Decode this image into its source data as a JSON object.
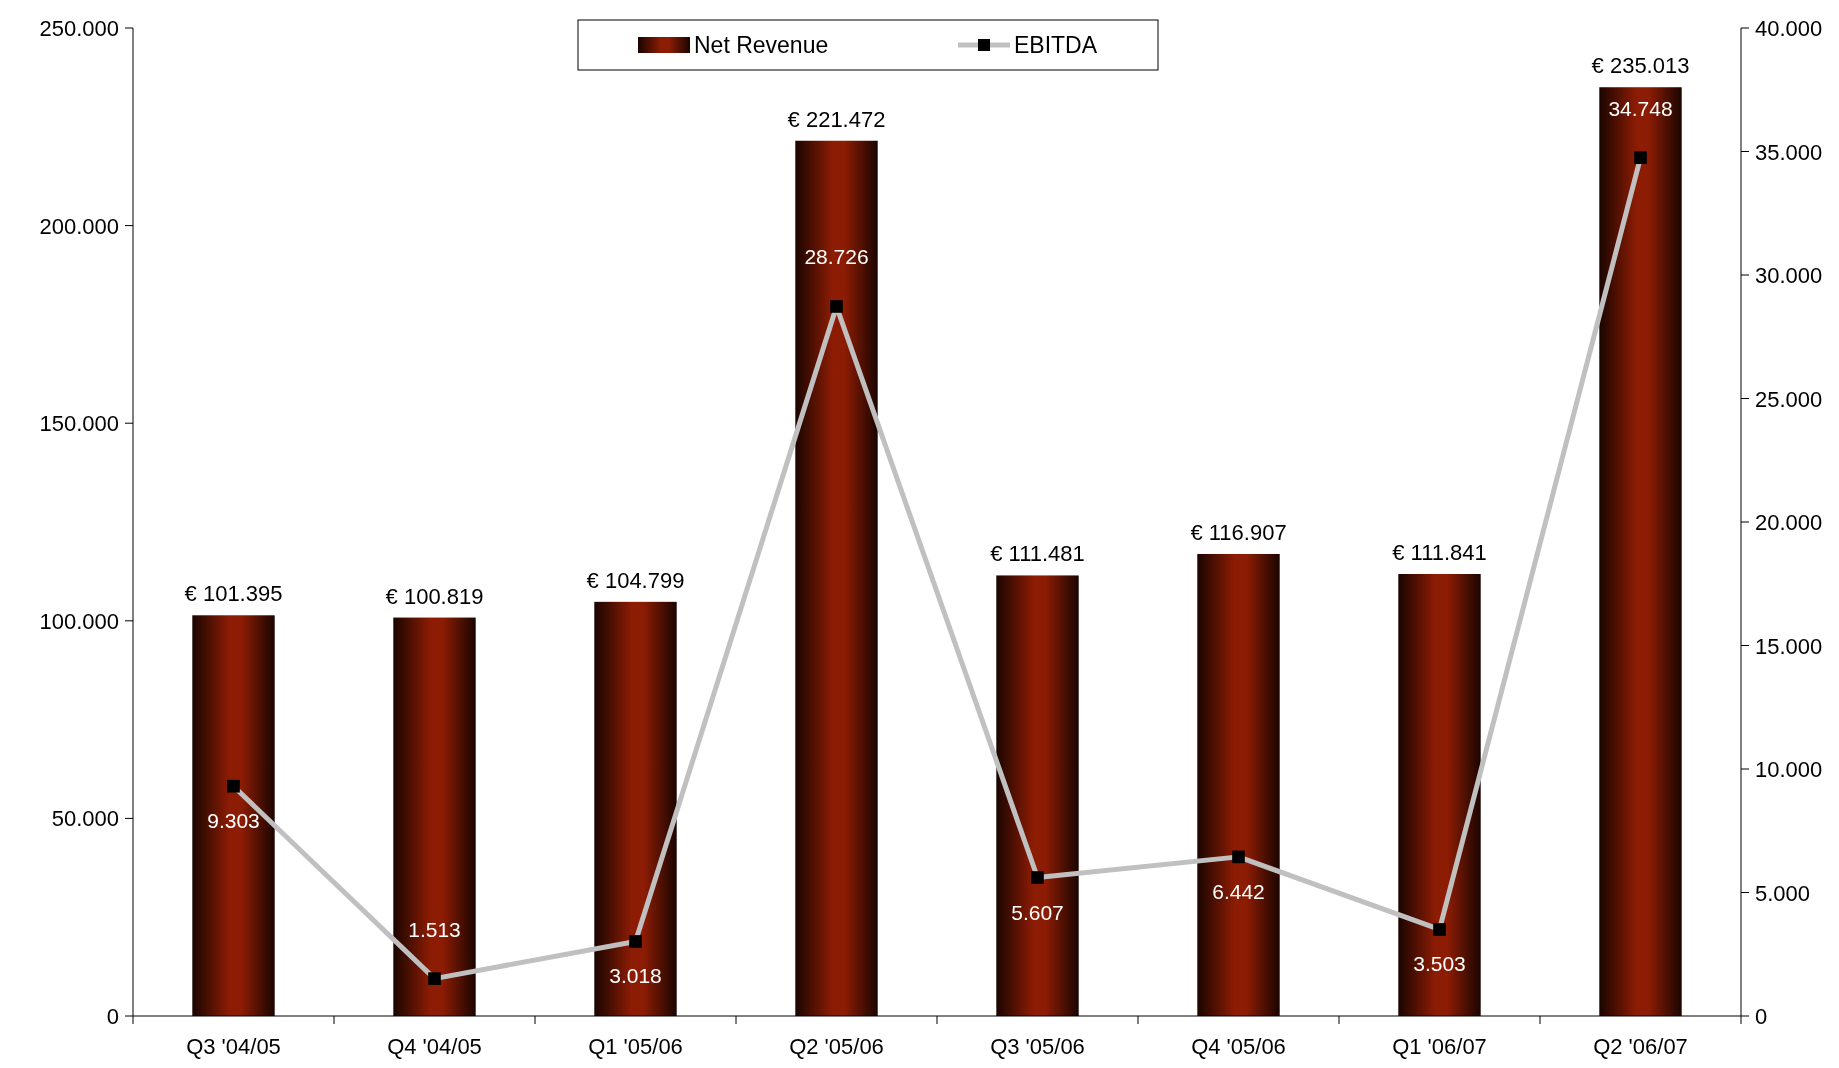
{
  "chart_data": {
    "type": "bar",
    "categories": [
      "Q3 '04/05",
      "Q4 '04/05",
      "Q1 '05/06",
      "Q2 '05/06",
      "Q3 '05/06",
      "Q4 '05/06",
      "Q1 '06/07",
      "Q2 '06/07"
    ],
    "series": [
      {
        "name": "Net Revenue",
        "color": "#8c1c04",
        "values": [
          101395,
          100819,
          104799,
          221472,
          111481,
          116907,
          111841,
          235013
        ],
        "value_labels": [
          "€ 101.395",
          "€ 100.819",
          "€ 104.799",
          "€ 221.472",
          "€ 111.481",
          "€ 116.907",
          "€ 111.841",
          "€ 235.013"
        ]
      },
      {
        "name": "EBITDA",
        "type": "line",
        "axis": "y2",
        "color": "#c0c0c0",
        "values": [
          9303,
          1513,
          3018,
          28726,
          5607,
          6442,
          3503,
          34748
        ],
        "value_labels": [
          "9.303",
          "1.513",
          "3.018",
          "28.726",
          "5.607",
          "6.442",
          "3.503",
          "34.748"
        ]
      }
    ],
    "ylim": [
      0,
      250000
    ],
    "yticks": [
      {
        "value": 0,
        "label": "0"
      },
      {
        "value": 50000,
        "label": "50.000"
      },
      {
        "value": 100000,
        "label": "100.000"
      },
      {
        "value": 150000,
        "label": "150.000"
      },
      {
        "value": 200000,
        "label": "200.000"
      },
      {
        "value": 250000,
        "label": "250.000"
      }
    ],
    "y2lim": [
      0,
      40000
    ],
    "y2ticks": [
      {
        "value": 0,
        "label": "0"
      },
      {
        "value": 5000,
        "label": "5.000"
      },
      {
        "value": 10000,
        "label": "10.000"
      },
      {
        "value": 15000,
        "label": "15.000"
      },
      {
        "value": 20000,
        "label": "20.000"
      },
      {
        "value": 25000,
        "label": "25.000"
      },
      {
        "value": 30000,
        "label": "30.000"
      },
      {
        "value": 35000,
        "label": "35.000"
      },
      {
        "value": 40000,
        "label": "40.000"
      }
    ],
    "marker": "square",
    "legend": "top",
    "grid": false
  }
}
